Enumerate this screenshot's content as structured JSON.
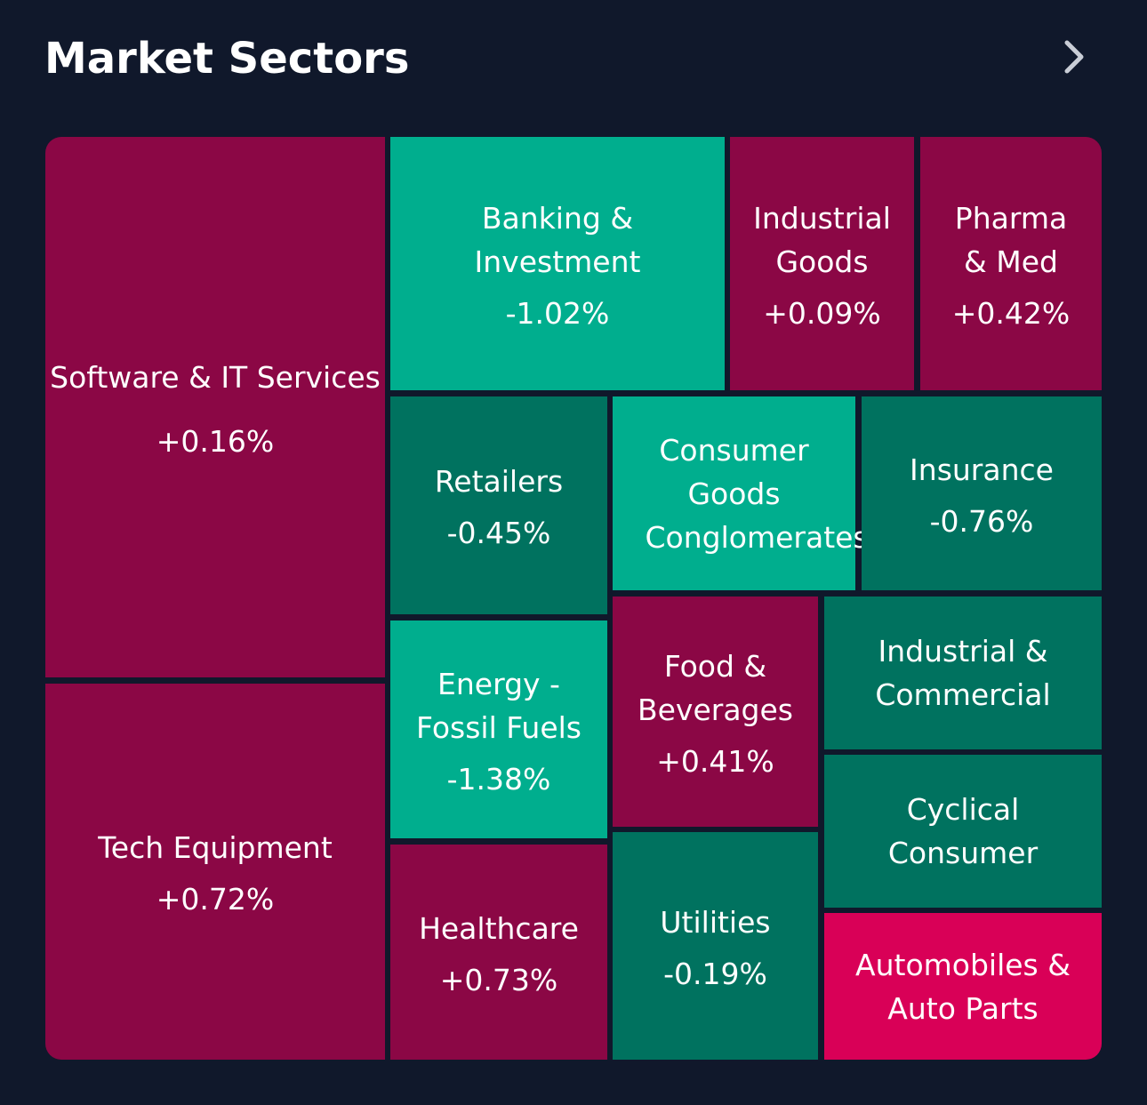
{
  "header": {
    "title": "Market Sectors",
    "more_icon": "chevron-right-icon"
  },
  "colors": {
    "background": "#10182b",
    "gain": "#8b0745",
    "gain_strong": "#d90057",
    "loss_strong": "#00ae8e",
    "loss": "#00725f",
    "text": "#ffffff"
  },
  "sectors": {
    "software": {
      "name": "Software & IT Services",
      "change": "+0.16%",
      "color": "#8b0745"
    },
    "tech_equipment": {
      "name": "Tech Equipment",
      "change": "+0.72%",
      "color": "#8b0745"
    },
    "banking": {
      "name": "Banking & Investment",
      "change": "-1.02%",
      "color": "#00ae8e"
    },
    "industrial_goods": {
      "name": "Industrial Goods",
      "change": "+0.09%",
      "color": "#8b0745"
    },
    "pharma": {
      "name": "Pharma & Med",
      "change": "+0.42%",
      "color": "#8b0745"
    },
    "retailers": {
      "name": "Retailers",
      "change": "-0.45%",
      "color": "#00725f"
    },
    "consumer_goods": {
      "name": "Consumer Goods Conglomerates",
      "change": "",
      "color": "#00ae8e"
    },
    "insurance": {
      "name": "Insurance",
      "change": "-0.76%",
      "color": "#00725f"
    },
    "energy": {
      "name": "Energy - Fossil Fuels",
      "change": "-1.38%",
      "color": "#00ae8e"
    },
    "food": {
      "name": "Food & Beverages",
      "change": "+0.41%",
      "color": "#8b0745"
    },
    "industrial_commercial": {
      "name": "Industrial & Commercial",
      "change": "",
      "color": "#00725f"
    },
    "cyclical": {
      "name": "Cyclical Consumer",
      "change": "",
      "color": "#00725f"
    },
    "healthcare": {
      "name": "Healthcare",
      "change": "+0.73%",
      "color": "#8b0745"
    },
    "utilities": {
      "name": "Utilities",
      "change": "-0.19%",
      "color": "#00725f"
    },
    "automobiles": {
      "name": "Automobiles & Auto Parts",
      "change": "",
      "color": "#d90057"
    }
  }
}
